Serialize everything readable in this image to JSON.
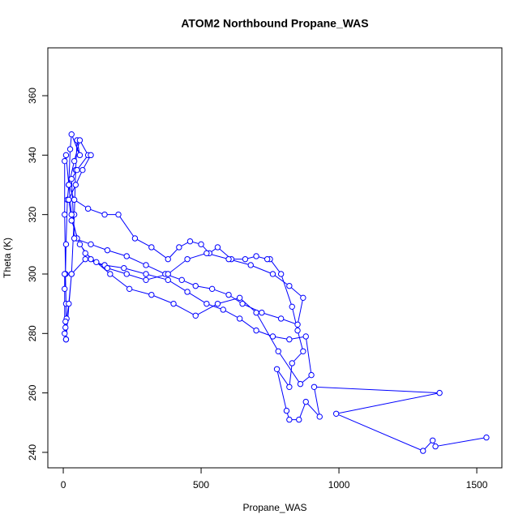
{
  "chart_data": {
    "type": "line",
    "title": "ATOM2 Northbound Propane_WAS",
    "x_label": "Propane_WAS",
    "y_label": "Theta (K)",
    "color": "#0000ff",
    "markers": "circle",
    "x": [
      1535,
      1350,
      1340,
      1305,
      990,
      1365,
      910,
      930,
      880,
      855,
      820,
      810,
      775,
      820,
      830,
      870,
      850,
      830,
      790,
      750,
      740,
      700,
      660,
      610,
      560,
      530,
      500,
      460,
      420,
      380,
      320,
      260,
      200,
      150,
      90,
      40,
      20,
      10,
      5,
      5,
      8,
      10,
      10,
      8,
      12,
      20,
      30,
      40,
      45,
      50,
      60,
      30,
      25,
      20,
      15,
      10,
      8,
      5,
      5,
      5,
      8,
      10,
      30,
      80,
      150,
      220,
      300,
      380,
      450,
      520,
      580,
      640,
      700,
      760,
      820,
      880,
      900,
      860,
      780,
      700,
      640,
      560,
      480,
      400,
      320,
      240,
      170,
      120,
      80,
      50,
      30,
      20,
      40,
      60,
      90,
      50,
      30,
      40,
      100,
      160,
      230,
      300,
      370,
      430,
      480,
      540,
      600,
      650,
      720,
      790,
      850,
      870,
      820,
      760,
      680,
      600,
      520,
      450,
      380,
      300,
      230,
      160,
      100,
      60,
      30,
      20,
      45,
      70,
      100
    ],
    "values": [
      245,
      242,
      244,
      240.5,
      253,
      260,
      262,
      252,
      257,
      251,
      251,
      254,
      268,
      262,
      270,
      274,
      281,
      289,
      300,
      305,
      305,
      306,
      305,
      305,
      309,
      307,
      310,
      311,
      309,
      305,
      309,
      312,
      320,
      320,
      322,
      325,
      330,
      340,
      338,
      320,
      300,
      290,
      278,
      282,
      285,
      290,
      300,
      320,
      335,
      345,
      340,
      347,
      342,
      330,
      325,
      310,
      300,
      295,
      300,
      280,
      284,
      278,
      300,
      305,
      303,
      302,
      300,
      298,
      294,
      290,
      288,
      285,
      281,
      279,
      278,
      279,
      266,
      263,
      274,
      287,
      292,
      290,
      286,
      290,
      293,
      295,
      300,
      304,
      307,
      312,
      320,
      330,
      338,
      345,
      340,
      335,
      332,
      312,
      310,
      308,
      306,
      303,
      300,
      298,
      296,
      295,
      293,
      290,
      287,
      285,
      283,
      292,
      296,
      300,
      303,
      305,
      307,
      305,
      300,
      298,
      300,
      302,
      305,
      310,
      318,
      325,
      330,
      335,
      340
    ],
    "xlim": [
      -56,
      1591
    ],
    "xticks": [
      0,
      500,
      1000,
      1500
    ],
    "ylim": [
      234.8,
      376.1
    ],
    "yticks": [
      240,
      260,
      280,
      300,
      320,
      340,
      360
    ]
  }
}
